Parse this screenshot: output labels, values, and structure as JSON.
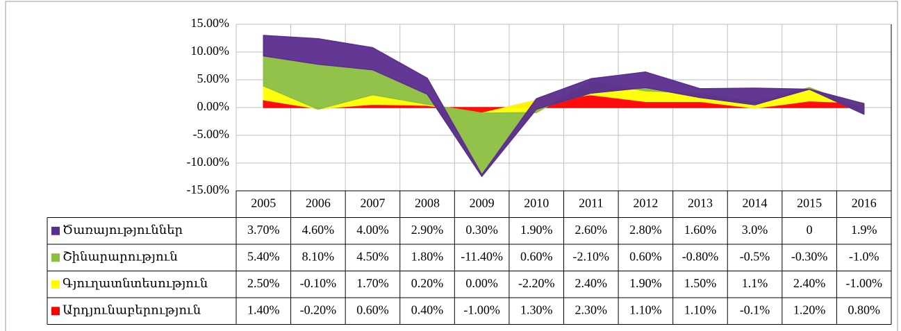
{
  "chart_data": {
    "type": "stacked_area",
    "categories": [
      "2005",
      "2006",
      "2007",
      "2008",
      "2009",
      "2010",
      "2011",
      "2012",
      "2013",
      "2014",
      "2015",
      "2016"
    ],
    "series": [
      {
        "name": "Ծառայություններ",
        "color": "#5b2d8e",
        "values": [
          3.7,
          4.6,
          4.0,
          2.9,
          0.3,
          1.9,
          2.6,
          2.8,
          1.6,
          3.0,
          0,
          1.9
        ],
        "value_labels": [
          "3.70%",
          "4.60%",
          "4.00%",
          "2.90%",
          "0.30%",
          "1.90%",
          "2.60%",
          "2.80%",
          "1.60%",
          "3.0%",
          "0",
          "1.9%"
        ]
      },
      {
        "name": "Շինարարություն",
        "color": "#8cbf3f",
        "values": [
          5.4,
          8.1,
          4.5,
          1.8,
          -11.4,
          0.6,
          -2.1,
          0.6,
          -0.8,
          -0.5,
          -0.3,
          -1.0
        ],
        "value_labels": [
          "5.40%",
          "8.10%",
          "4.50%",
          "1.80%",
          "-11.40%",
          "0.60%",
          "-2.10%",
          "0.60%",
          "-0.80%",
          "-0.5%",
          "-0.30%",
          "-1.0%"
        ]
      },
      {
        "name": "Գյուղատնտեսություն",
        "color": "#ffff00",
        "values": [
          2.5,
          -0.1,
          1.7,
          0.2,
          0.0,
          -2.2,
          2.4,
          1.9,
          1.5,
          1.1,
          2.4,
          -1.0
        ],
        "value_labels": [
          "2.50%",
          "-0.10%",
          "1.70%",
          "0.20%",
          "0.00%",
          "-2.20%",
          "2.40%",
          "1.90%",
          "1.50%",
          "1.1%",
          "2.40%",
          "-1.00%"
        ]
      },
      {
        "name": "Արդյունաբերություն",
        "color": "#ff0000",
        "values": [
          1.4,
          -0.2,
          0.6,
          0.4,
          -1.0,
          1.3,
          2.3,
          1.1,
          1.1,
          -0.1,
          1.2,
          0.8
        ],
        "value_labels": [
          "1.40%",
          "-0.20%",
          "0.60%",
          "0.40%",
          "-1.00%",
          "1.30%",
          "2.30%",
          "1.10%",
          "1.10%",
          "-0.1%",
          "1.20%",
          "0.80%"
        ]
      }
    ],
    "ylim": [
      -15,
      15
    ],
    "yticks": [
      {
        "value": -15,
        "label": "-15.00%"
      },
      {
        "value": -10,
        "label": "-10.00%"
      },
      {
        "value": -5,
        "label": "-5.00%"
      },
      {
        "value": 0,
        "label": "0.00%"
      },
      {
        "value": 5,
        "label": "5.00%"
      },
      {
        "value": 10,
        "label": "10.00%"
      },
      {
        "value": 15,
        "label": "15.00%"
      }
    ],
    "grid": true
  }
}
